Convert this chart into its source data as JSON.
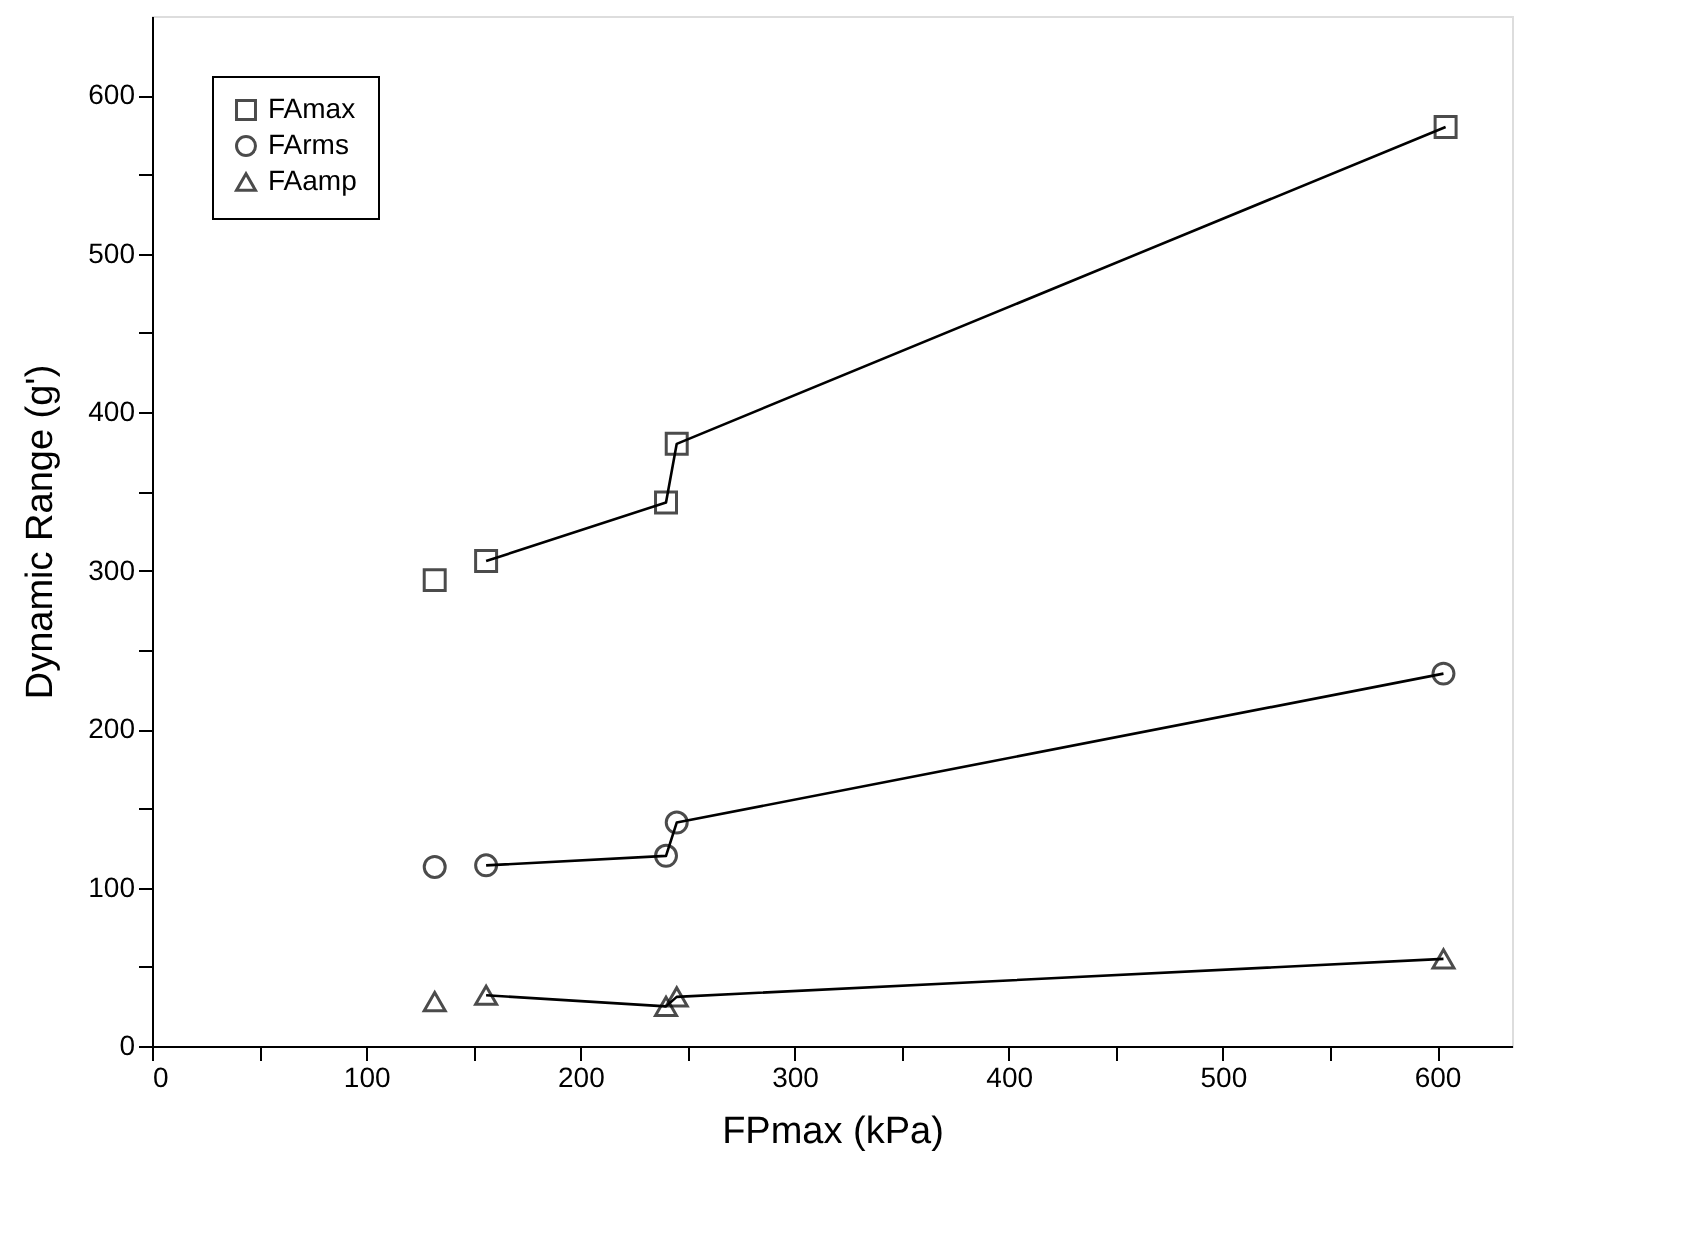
{
  "chart_data": {
    "type": "scatter",
    "xlabel": "FPmax (kPa)",
    "ylabel": "Dynamic Range (g')",
    "xlim": [
      0,
      635
    ],
    "ylim": [
      0,
      650
    ],
    "xticks": [
      0,
      {
        "value": 50,
        "label": null
      },
      100,
      {
        "value": 150,
        "label": null
      },
      200,
      {
        "value": 250,
        "label": null
      },
      300,
      {
        "value": 350,
        "label": null
      },
      400,
      {
        "value": 450,
        "label": null
      },
      500,
      {
        "value": 550,
        "label": null
      },
      600
    ],
    "yticks": [
      0,
      {
        "value": 50,
        "label": null
      },
      100,
      {
        "value": 150,
        "label": null
      },
      200,
      {
        "value": 250,
        "label": null
      },
      300,
      {
        "value": 350,
        "label": null
      },
      400,
      {
        "value": 450,
        "label": null
      },
      500,
      {
        "value": 550,
        "label": null
      },
      600
    ],
    "grid": false,
    "legend": "top left",
    "series": [
      {
        "name": "FAmax",
        "marker": "square",
        "color": "#000000",
        "x": [
          132,
          156,
          240,
          245,
          604
        ],
        "values": [
          294,
          306,
          343,
          380,
          580
        ]
      },
      {
        "name": "FArms",
        "marker": "circle",
        "color": "#000000",
        "x": [
          132,
          156,
          240,
          245,
          603
        ],
        "values": [
          113,
          114,
          120,
          141,
          235
        ]
      },
      {
        "name": "FAamp",
        "marker": "triangle",
        "color": "#000000",
        "x": [
          132,
          156,
          240,
          245,
          603
        ],
        "values": [
          28,
          32,
          25,
          31,
          55
        ]
      },
      {
        "type": "line",
        "marker": "none",
        "line_style": "solid",
        "color": "#000000",
        "x": [
          156,
          240,
          245,
          604
        ],
        "values": [
          306,
          343,
          380,
          580
        ]
      },
      {
        "type": "line",
        "marker": "none",
        "line_style": "solid",
        "color": "#000000",
        "x": [
          156,
          240,
          245,
          603
        ],
        "values": [
          114,
          120,
          141,
          235
        ]
      },
      {
        "type": "line",
        "marker": "none",
        "line_style": "solid",
        "color": "#000000",
        "x": [
          156,
          240,
          245,
          603
        ],
        "values": [
          32,
          25,
          31,
          55
        ]
      }
    ]
  }
}
